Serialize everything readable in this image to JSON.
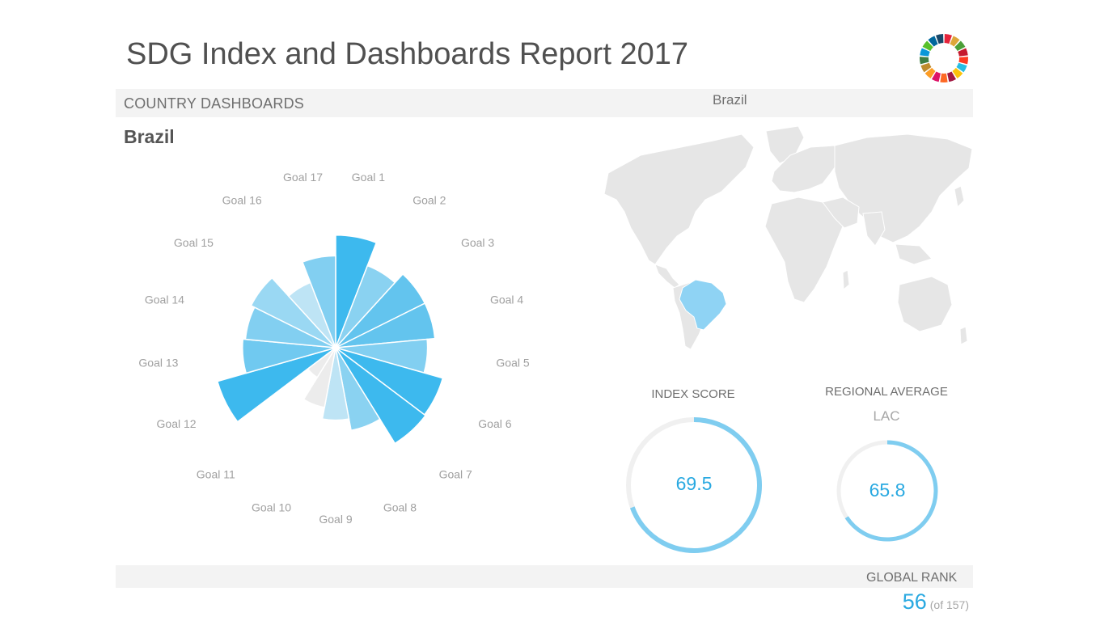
{
  "header": {
    "title": "SDG Index and Dashboards Report 2017"
  },
  "logo": {
    "icon": "sdg-wheel-icon",
    "colors": [
      "#e5243b",
      "#dda63a",
      "#4c9f38",
      "#c5192d",
      "#ff3a21",
      "#26bde2",
      "#fcc30b",
      "#a21942",
      "#fd6925",
      "#dd1367",
      "#fd9d24",
      "#bf8b2e",
      "#3f7e44",
      "#0a97d9",
      "#56c02b",
      "#00689d",
      "#19486a"
    ]
  },
  "section": {
    "label": "COUNTRY DASHBOARDS",
    "map_country": "Brazil"
  },
  "country": {
    "name": "Brazil"
  },
  "chart_data": {
    "type": "polar-bar",
    "categories": [
      "Goal 1",
      "Goal 2",
      "Goal 3",
      "Goal 4",
      "Goal 5",
      "Goal 6",
      "Goal 7",
      "Goal 8",
      "Goal 9",
      "Goal 10",
      "Goal 11",
      "Goal 12",
      "Goal 13",
      "Goal 14",
      "Goal 15",
      "Goal 16",
      "Goal 17"
    ],
    "values": [
      87,
      68,
      77,
      77,
      71,
      86,
      87,
      65,
      56,
      47,
      27,
      95,
      72,
      70,
      73,
      54,
      71
    ],
    "colors": [
      "#3db9ee",
      "#8ad2f1",
      "#63c4ee",
      "#63c4ee",
      "#82cff1",
      "#3db9ee",
      "#3db9ee",
      "#8ad2f1",
      "#bee4f5",
      "#ececec",
      "#ececec",
      "#3db9ee",
      "#70c9f0",
      "#82cff1",
      "#9ad8f3",
      "#bee4f5",
      "#82cff1"
    ],
    "ylim": [
      0,
      100
    ],
    "title": ""
  },
  "map": {
    "highlight_color": "#8fd3f4",
    "base_color": "#e6e6e6"
  },
  "index_score": {
    "label": "INDEX SCORE",
    "value": "69.5",
    "fraction": 0.695
  },
  "regional_average": {
    "label": "REGIONAL AVERAGE",
    "region": "LAC",
    "value": "65.8",
    "fraction": 0.658
  },
  "rank": {
    "label": "GLOBAL RANK",
    "value": "56",
    "of": "(of 157)"
  }
}
